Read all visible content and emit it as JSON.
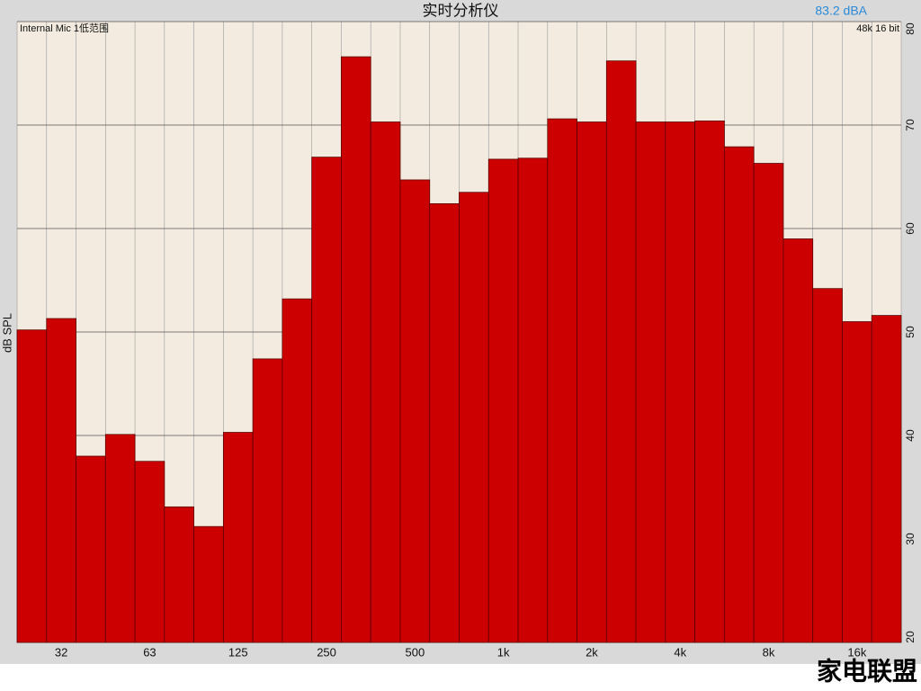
{
  "chart_data": {
    "type": "bar",
    "title": "实时分析仪",
    "level": "83.2 dBA",
    "source": "Internal Mic 1低范围",
    "format": "48k 16 bit",
    "y_label": "dB SPL",
    "watermark": "家电联盟",
    "color": "#cc0000",
    "grid": true,
    "categories": [
      null,
      "32",
      null,
      null,
      "63",
      null,
      null,
      "125",
      null,
      null,
      "250",
      null,
      null,
      "500",
      null,
      null,
      "1k",
      null,
      null,
      "2k",
      null,
      null,
      "4k",
      null,
      null,
      "8k",
      null,
      null,
      "16k",
      null
    ],
    "values": [
      50.2,
      51.3,
      38.0,
      40.1,
      37.5,
      33.1,
      31.2,
      40.3,
      47.4,
      53.2,
      66.9,
      76.6,
      70.3,
      64.7,
      62.4,
      63.5,
      66.7,
      66.8,
      70.6,
      70.3,
      76.2,
      70.3,
      70.3,
      70.4,
      67.9,
      66.3,
      59.0,
      54.2,
      51.0,
      51.6
    ],
    "ylim": [
      20,
      80
    ],
    "yticks": [
      20,
      30,
      40,
      50,
      60,
      70,
      80
    ]
  }
}
